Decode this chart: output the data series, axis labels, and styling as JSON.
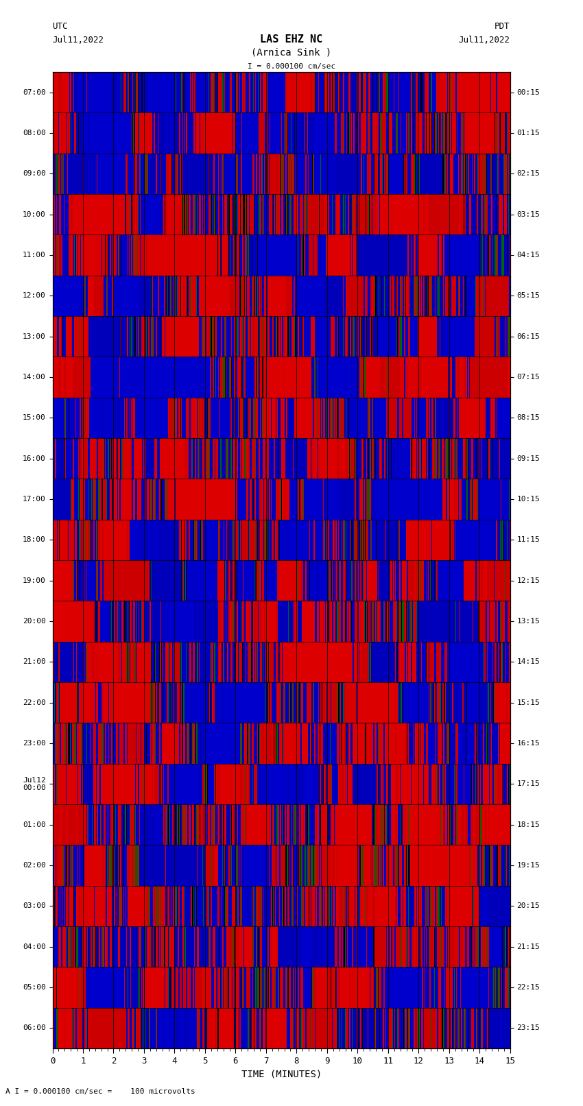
{
  "title_line1": "LAS EHZ NC",
  "title_line2": "(Arnica Sink )",
  "scale_label": "I = 0.000100 cm/sec",
  "footer_label": "A I = 0.000100 cm/sec =    100 microvolts",
  "left_label_top": "UTC",
  "left_label_date": "Jul11,2022",
  "right_label_top": "PDT",
  "right_label_date": "Jul11,2022",
  "xlabel": "TIME (MINUTES)",
  "xlim": [
    0,
    15
  ],
  "n_rows": 24,
  "utc_labels": [
    "07:00",
    "08:00",
    "09:00",
    "10:00",
    "11:00",
    "12:00",
    "13:00",
    "14:00",
    "15:00",
    "16:00",
    "17:00",
    "18:00",
    "19:00",
    "20:00",
    "21:00",
    "22:00",
    "23:00",
    "Jul12\n00:00",
    "01:00",
    "02:00",
    "03:00",
    "04:00",
    "05:00",
    "06:00"
  ],
  "pdt_labels": [
    "00:15",
    "01:15",
    "02:15",
    "03:15",
    "04:15",
    "05:15",
    "06:15",
    "07:15",
    "08:15",
    "09:15",
    "10:15",
    "11:15",
    "12:15",
    "13:15",
    "14:15",
    "15:15",
    "16:15",
    "17:15",
    "18:15",
    "19:15",
    "20:15",
    "21:15",
    "22:15",
    "23:15"
  ],
  "bg_color": "#ffffff",
  "plot_bg": "#006600",
  "seed": 42,
  "n_cols": 900,
  "colors": [
    "#ff0000",
    "#0000ff",
    "#000000",
    "#004400",
    "#00aa00",
    "#ff0000",
    "#0000ff"
  ],
  "color_weights": [
    0.3,
    0.25,
    0.15,
    0.1,
    0.1,
    0.05,
    0.05
  ]
}
